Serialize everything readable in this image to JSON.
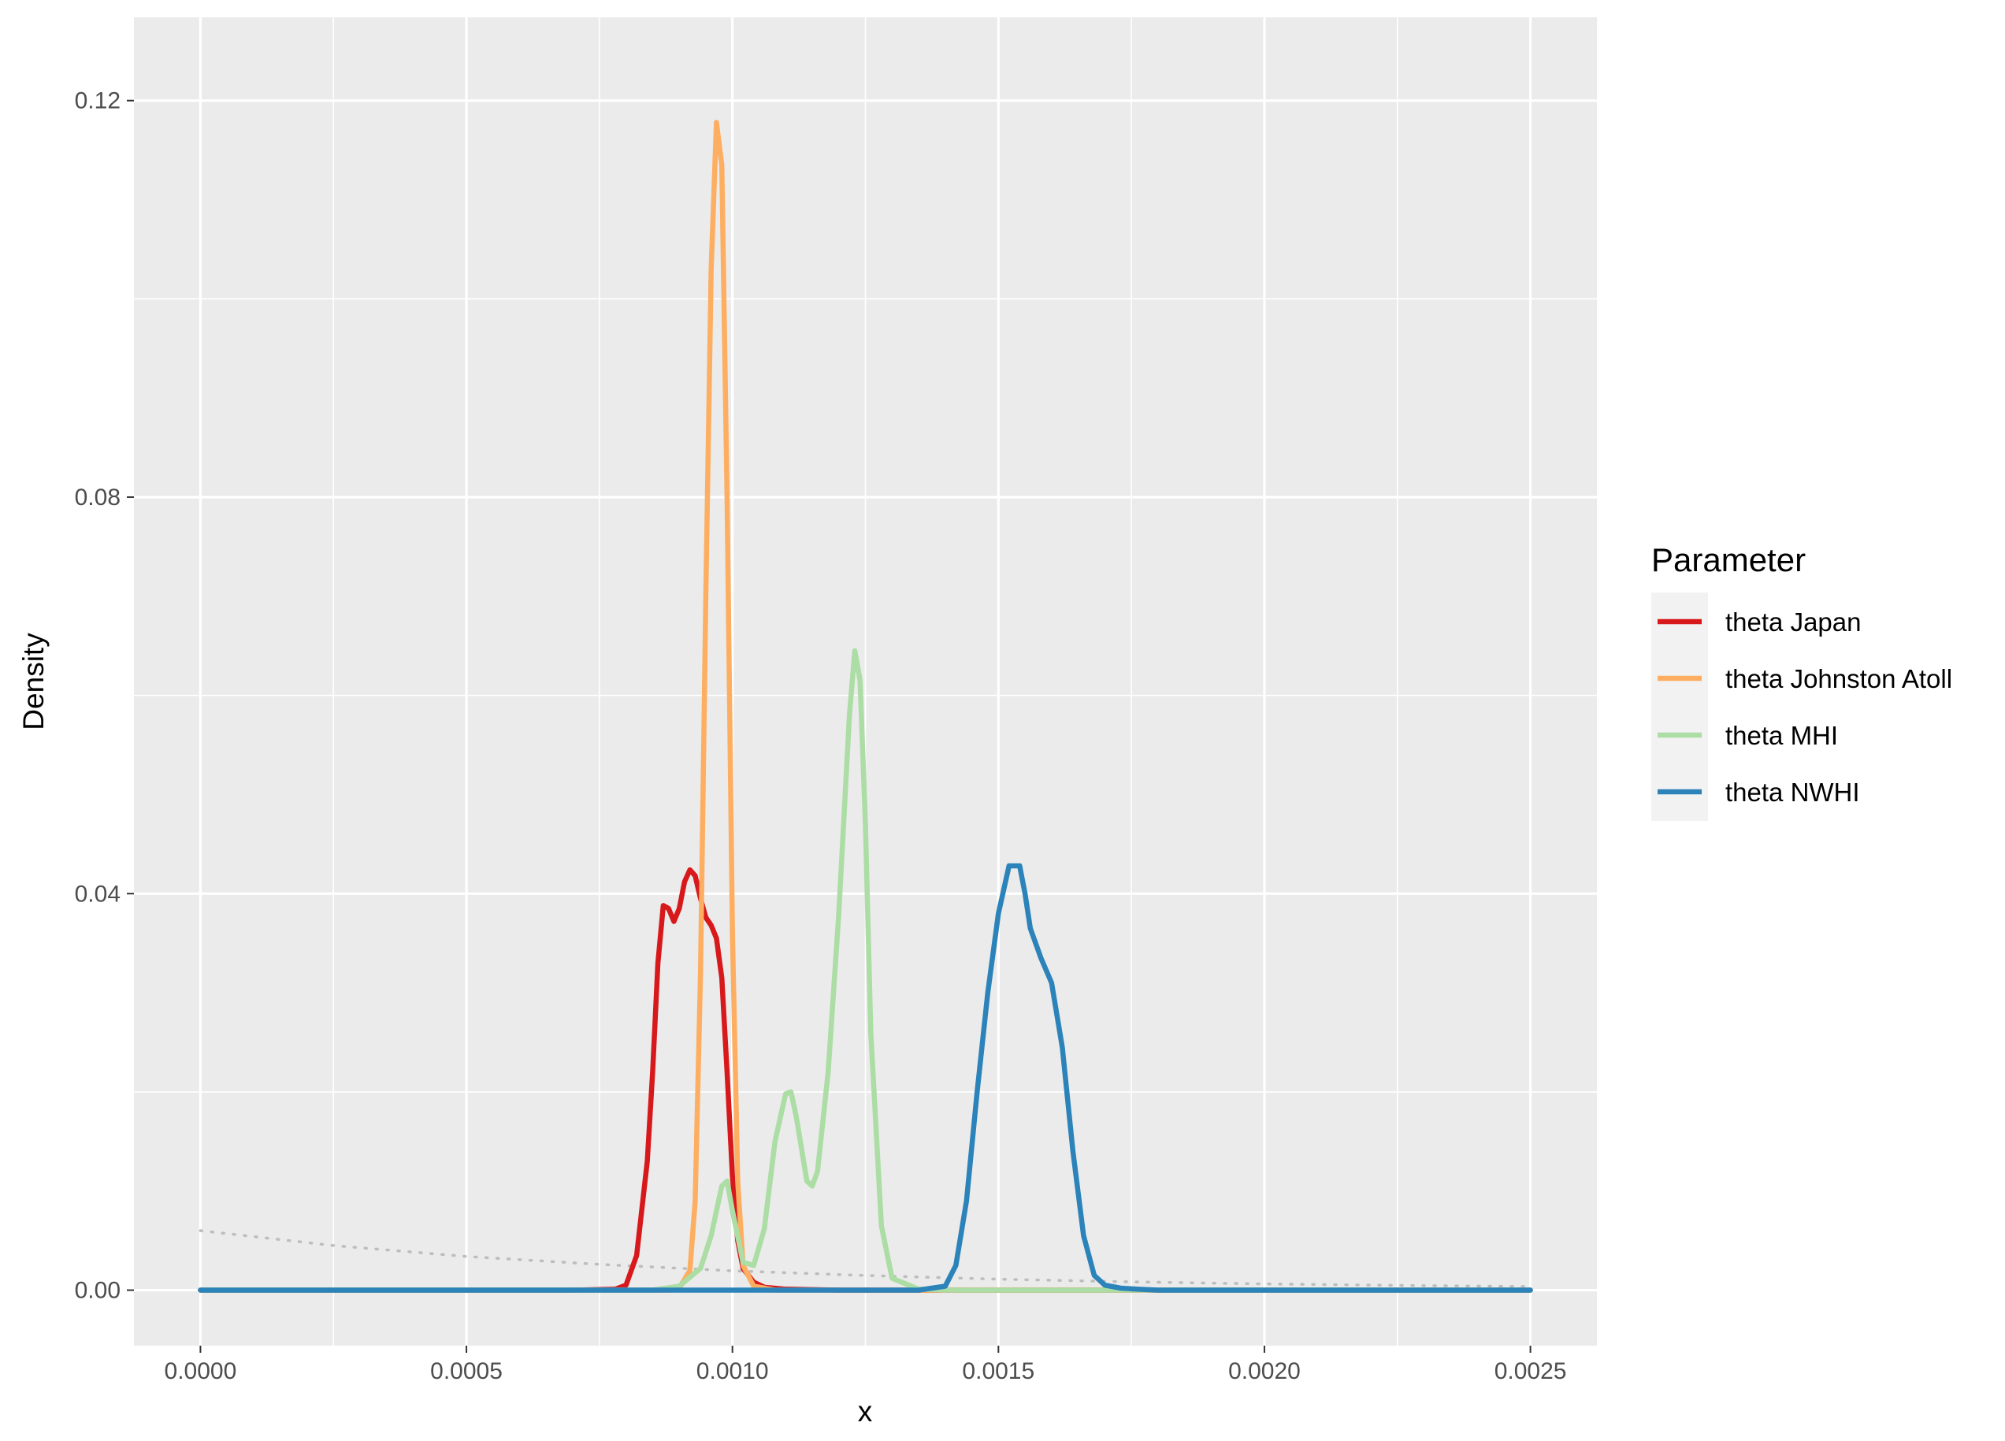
{
  "chart_data": {
    "type": "line",
    "title": "",
    "xlabel": "x",
    "ylabel": "Density",
    "xlim": [
      -0.000125,
      0.002625
    ],
    "ylim": [
      -0.0056,
      0.1284
    ],
    "x_ticks": [
      0,
      0.0005,
      0.001,
      0.0015,
      0.002,
      0.0025
    ],
    "x_tick_labels": [
      "0.0000",
      "0.0005",
      "0.0010",
      "0.0015",
      "0.0020",
      "0.0025"
    ],
    "y_ticks": [
      0,
      0.04,
      0.08,
      0.12
    ],
    "y_tick_labels": [
      "0.00",
      "0.04",
      "0.08",
      "0.12"
    ],
    "grid": true,
    "legend": {
      "title": "Parameter",
      "position": "right",
      "entries": [
        "theta Japan",
        "theta Johnston Atoll",
        "theta MHI",
        "theta NWHI"
      ]
    },
    "series": [
      {
        "name": "theta Japan",
        "color": "#d7191c",
        "x": [
          0,
          0.0007,
          0.00078,
          0.0008,
          0.00082,
          0.00084,
          0.00085,
          0.00086,
          0.00087,
          0.00088,
          0.00089,
          0.0009,
          0.00091,
          0.00092,
          0.00093,
          0.00094,
          0.00095,
          0.00096,
          0.00097,
          0.00098,
          0.00099,
          0.001,
          0.00101,
          0.00102,
          0.00104,
          0.00106,
          0.0011,
          0.0012,
          0.0025
        ],
        "y": [
          0,
          0,
          0.0001,
          0.0005,
          0.0035,
          0.013,
          0.022,
          0.033,
          0.0388,
          0.0385,
          0.0372,
          0.0385,
          0.0412,
          0.0424,
          0.0418,
          0.0395,
          0.0376,
          0.0368,
          0.0355,
          0.0315,
          0.022,
          0.0115,
          0.005,
          0.0022,
          0.0008,
          0.0003,
          0.0001,
          0,
          0
        ]
      },
      {
        "name": "theta Johnston Atoll",
        "color": "#fdae61",
        "x": [
          0,
          0.00088,
          0.0009,
          0.00092,
          0.00093,
          0.00094,
          0.00095,
          0.00096,
          0.00097,
          0.00098,
          0.00099,
          0.001,
          0.00101,
          0.00102,
          0.00104,
          0.00108,
          0.0012,
          0.0025
        ],
        "y": [
          0,
          0,
          0.0002,
          0.002,
          0.009,
          0.032,
          0.07,
          0.103,
          0.1178,
          0.1135,
          0.08,
          0.036,
          0.011,
          0.0025,
          0.0004,
          0,
          0,
          0
        ]
      },
      {
        "name": "theta MHI",
        "color": "#abdda4",
        "x": [
          0,
          0.00085,
          0.0009,
          0.00094,
          0.00096,
          0.00098,
          0.00099,
          0.001,
          0.00102,
          0.00104,
          0.00106,
          0.00108,
          0.0011,
          0.00111,
          0.00112,
          0.00114,
          0.00115,
          0.00116,
          0.00118,
          0.0012,
          0.00122,
          0.00123,
          0.00124,
          0.00125,
          0.00126,
          0.00128,
          0.0013,
          0.00135,
          0.0014,
          0.0025
        ],
        "y": [
          0,
          0,
          0.0004,
          0.0022,
          0.0055,
          0.0105,
          0.011,
          0.008,
          0.0028,
          0.0025,
          0.0062,
          0.015,
          0.0198,
          0.02,
          0.0175,
          0.011,
          0.0105,
          0.012,
          0.022,
          0.038,
          0.058,
          0.0645,
          0.0615,
          0.047,
          0.026,
          0.0065,
          0.0012,
          0.0001,
          0,
          0
        ]
      },
      {
        "name": "theta NWHI",
        "color": "#2b83ba",
        "x": [
          0,
          0.00135,
          0.0014,
          0.00142,
          0.00144,
          0.00146,
          0.00148,
          0.0015,
          0.00152,
          0.00154,
          0.00155,
          0.00156,
          0.00158,
          0.0016,
          0.00162,
          0.00164,
          0.00166,
          0.00168,
          0.0017,
          0.00173,
          0.00176,
          0.0018,
          0.0025
        ],
        "y": [
          0,
          0,
          0.0004,
          0.0025,
          0.009,
          0.02,
          0.03,
          0.038,
          0.0428,
          0.0428,
          0.04,
          0.0365,
          0.0335,
          0.031,
          0.0245,
          0.014,
          0.0055,
          0.0015,
          0.0005,
          0.0002,
          0.0001,
          0,
          0
        ]
      },
      {
        "name": "",
        "color": "#bdbdbd",
        "style": "dotted",
        "x": [
          0,
          0.00025,
          0.0005,
          0.00075,
          0.001,
          0.00125,
          0.0015,
          0.00175,
          0.002,
          0.00225,
          0.0025
        ],
        "y": [
          0.006,
          0.0045,
          0.0034,
          0.0026,
          0.00195,
          0.00148,
          0.00111,
          0.00084,
          0.00063,
          0.00048,
          0.00036
        ]
      }
    ]
  }
}
